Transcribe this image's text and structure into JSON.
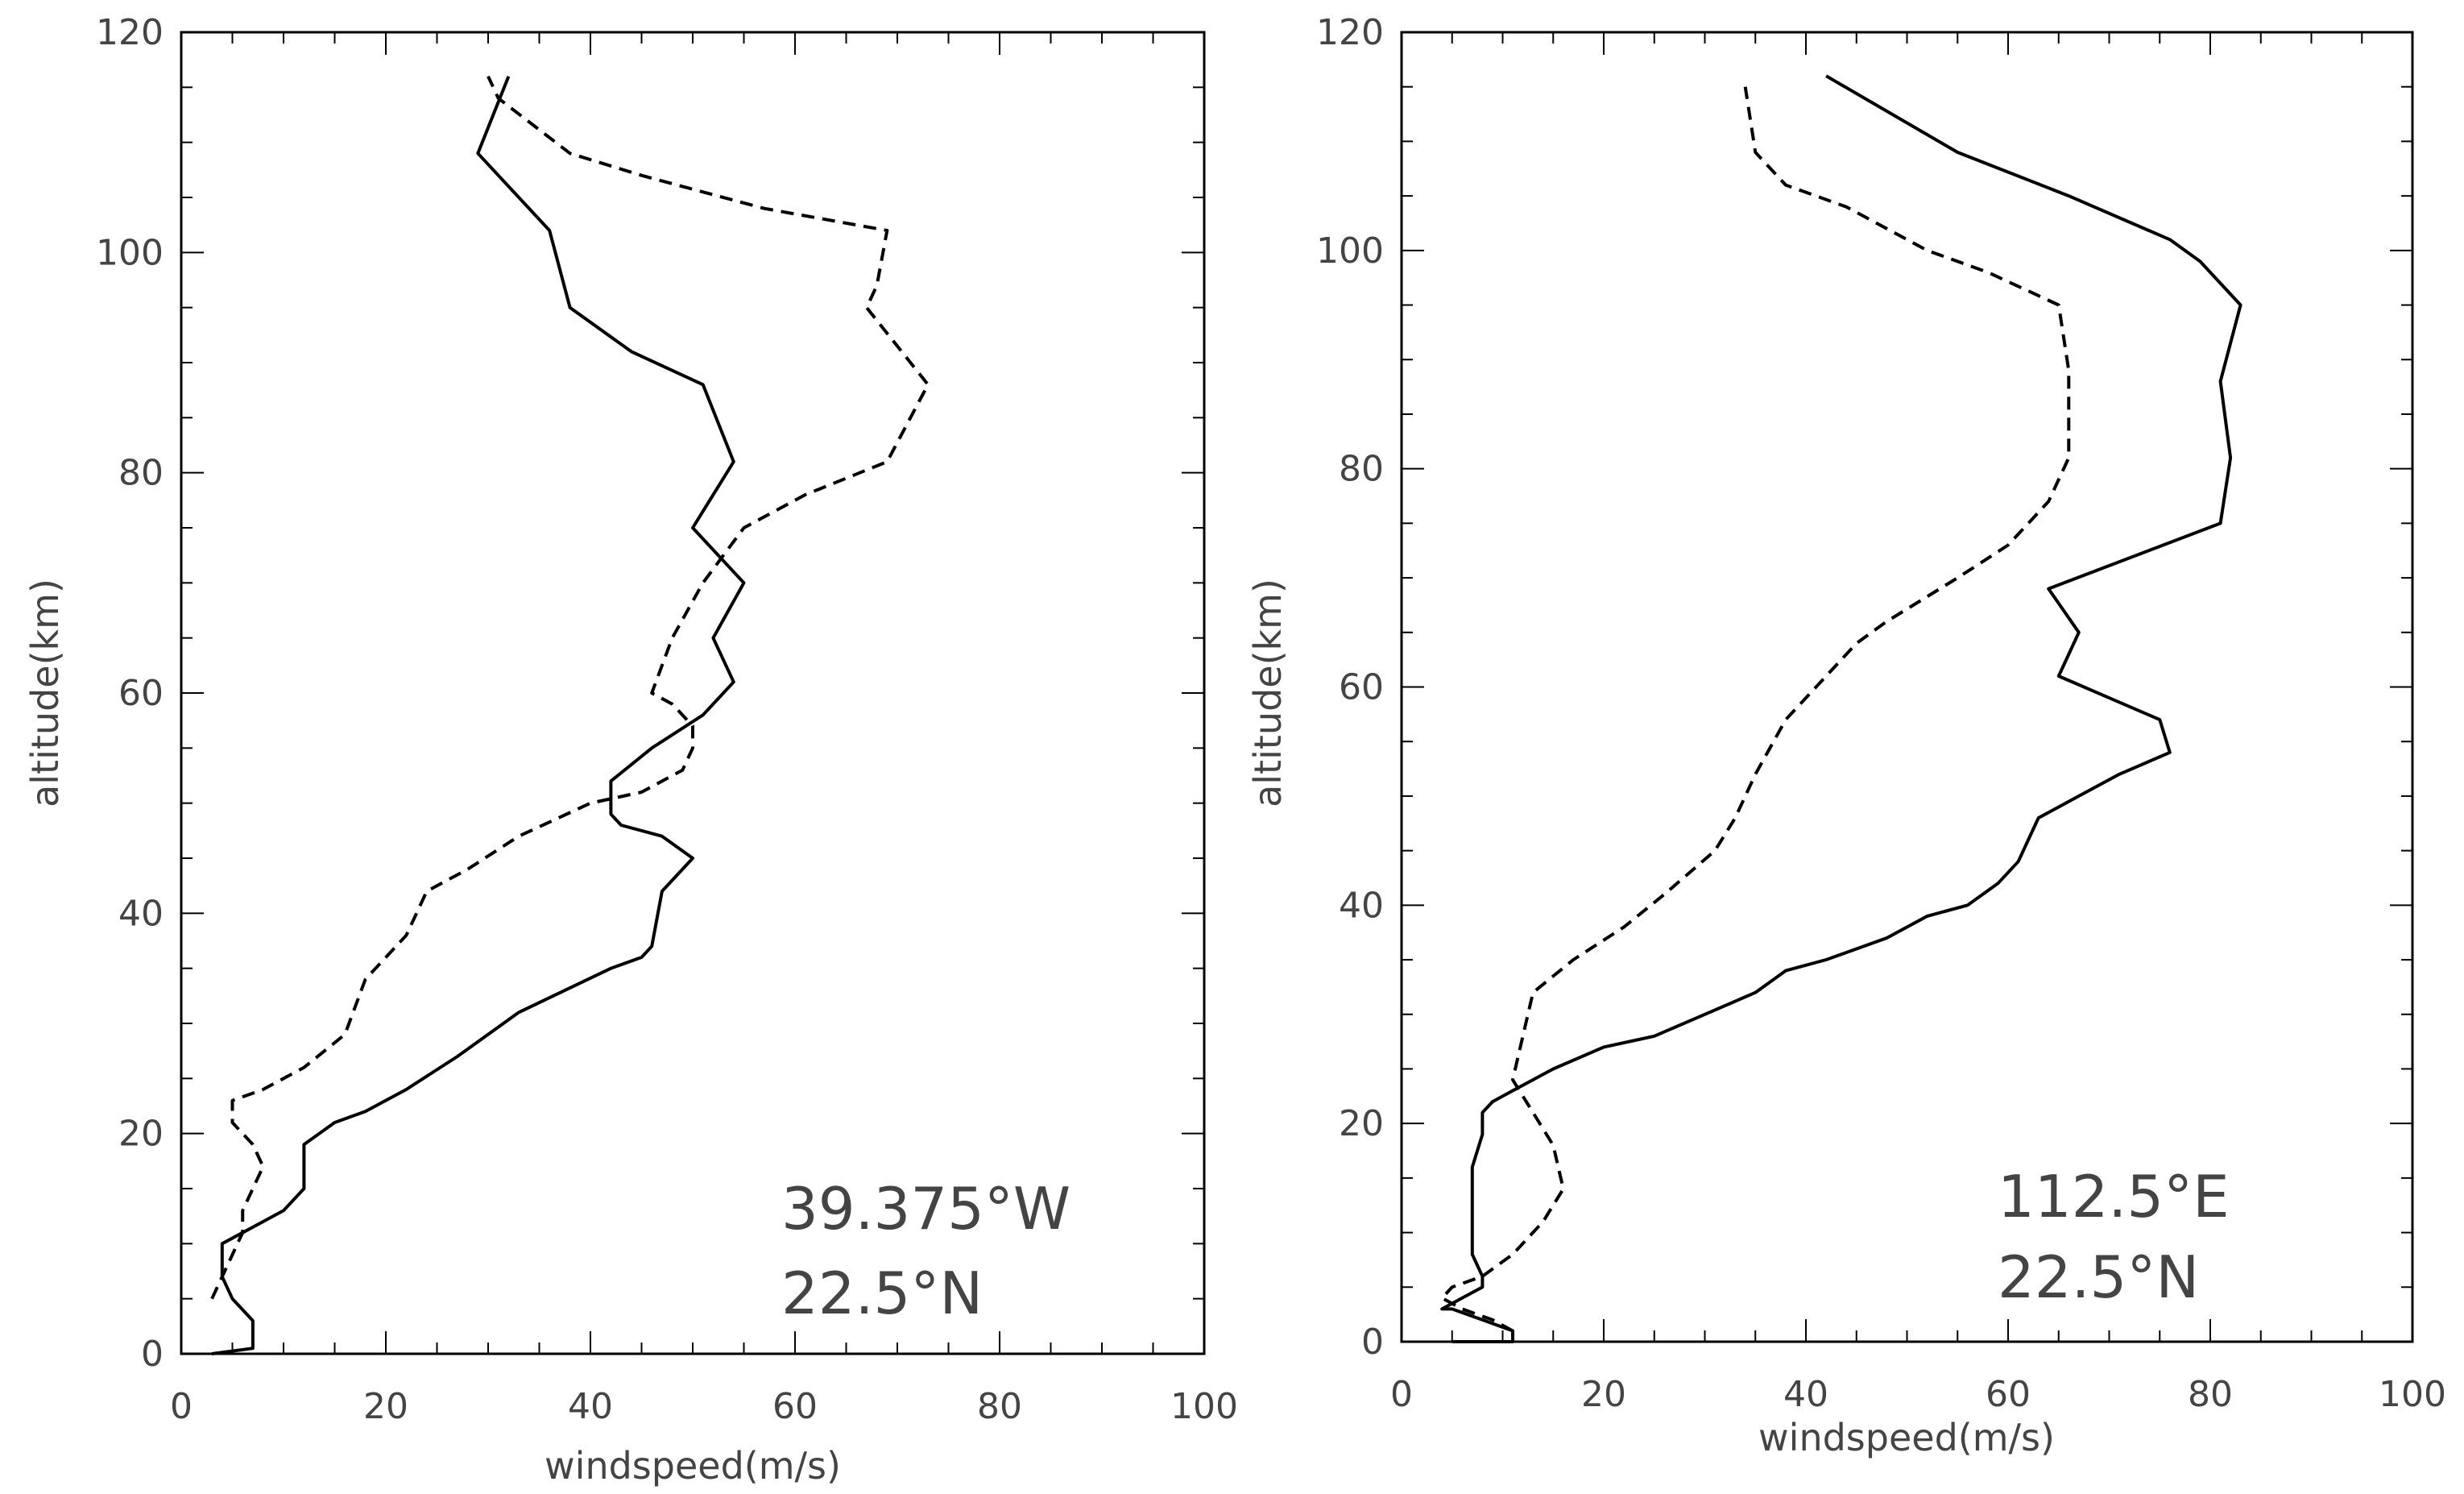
{
  "chart_data": [
    {
      "type": "line",
      "xlabel": "windspeed(m/s)",
      "ylabel": "altitude(km)",
      "xlim": [
        0,
        100
      ],
      "ylim": [
        0,
        120
      ],
      "x_ticks": [
        "0",
        "20",
        "40",
        "60",
        "80",
        "100"
      ],
      "y_ticks": [
        "0",
        "20",
        "40",
        "60",
        "80",
        "100",
        "120"
      ],
      "annotation": [
        "39.375°W",
        "22.5°N"
      ],
      "series": [
        {
          "name": "solid",
          "style": "solid",
          "points": [
            [
              3,
              0
            ],
            [
              7,
              0.5
            ],
            [
              7,
              3
            ],
            [
              6,
              4
            ],
            [
              5,
              5
            ],
            [
              4,
              7
            ],
            [
              4,
              9
            ],
            [
              4,
              10
            ],
            [
              6,
              11
            ],
            [
              8,
              12
            ],
            [
              10,
              13
            ],
            [
              12,
              15
            ],
            [
              12,
              18
            ],
            [
              12,
              19
            ],
            [
              15,
              21
            ],
            [
              18,
              22
            ],
            [
              22,
              24
            ],
            [
              27,
              27
            ],
            [
              33,
              31
            ],
            [
              42,
              35
            ],
            [
              45,
              36
            ],
            [
              46,
              37
            ],
            [
              47,
              42
            ],
            [
              50,
              45
            ],
            [
              47,
              47
            ],
            [
              43,
              48
            ],
            [
              42,
              49
            ],
            [
              42,
              52
            ],
            [
              46,
              55
            ],
            [
              51,
              58
            ],
            [
              54,
              61
            ],
            [
              52,
              65
            ],
            [
              55,
              70
            ],
            [
              50,
              75
            ],
            [
              54,
              81
            ],
            [
              51,
              88
            ],
            [
              44,
              91
            ],
            [
              38,
              95
            ],
            [
              36,
              102
            ],
            [
              29,
              109
            ],
            [
              32,
              116
            ]
          ]
        },
        {
          "name": "dashed",
          "style": "dashed",
          "points": [
            [
              3,
              5
            ],
            [
              4,
              7
            ],
            [
              5,
              9
            ],
            [
              6,
              11
            ],
            [
              6,
              13
            ],
            [
              7,
              15
            ],
            [
              8,
              17
            ],
            [
              7,
              19
            ],
            [
              5,
              21
            ],
            [
              5,
              23
            ],
            [
              8,
              24
            ],
            [
              12,
              26
            ],
            [
              16,
              29
            ],
            [
              18,
              34
            ],
            [
              22,
              38
            ],
            [
              24,
              42
            ],
            [
              28,
              44
            ],
            [
              33,
              47
            ],
            [
              40,
              50
            ],
            [
              45,
              51
            ],
            [
              49,
              53
            ],
            [
              50,
              55
            ],
            [
              50,
              57
            ],
            [
              48,
              59
            ],
            [
              46,
              60
            ],
            [
              48,
              65
            ],
            [
              51,
              70
            ],
            [
              55,
              75
            ],
            [
              61,
              78
            ],
            [
              69,
              81
            ],
            [
              73,
              88
            ],
            [
              67,
              95
            ],
            [
              68,
              97
            ],
            [
              69,
              102
            ],
            [
              57,
              104
            ],
            [
              45,
              107
            ],
            [
              38,
              109
            ],
            [
              31,
              114
            ],
            [
              30,
              116
            ]
          ]
        }
      ]
    },
    {
      "type": "line",
      "xlabel": "windspeed(m/s)",
      "ylabel": "altitude(km)",
      "xlim": [
        0,
        100
      ],
      "ylim": [
        0,
        120
      ],
      "x_ticks": [
        "0",
        "20",
        "40",
        "60",
        "80",
        "100"
      ],
      "y_ticks": [
        "0",
        "20",
        "40",
        "60",
        "80",
        "100",
        "120"
      ],
      "annotation": [
        "112.5°E",
        "22.5°N"
      ],
      "series": [
        {
          "name": "solid",
          "style": "solid",
          "points": [
            [
              5,
              0
            ],
            [
              11,
              0
            ],
            [
              11,
              1
            ],
            [
              8,
              2
            ],
            [
              5,
              3
            ],
            [
              4,
              3
            ],
            [
              6,
              4
            ],
            [
              8,
              5
            ],
            [
              8,
              6
            ],
            [
              7,
              8
            ],
            [
              7,
              10
            ],
            [
              7,
              13
            ],
            [
              7,
              16
            ],
            [
              8,
              19
            ],
            [
              8,
              21
            ],
            [
              9,
              22
            ],
            [
              11,
              23
            ],
            [
              15,
              25
            ],
            [
              20,
              27
            ],
            [
              25,
              28
            ],
            [
              30,
              30
            ],
            [
              35,
              32
            ],
            [
              38,
              34
            ],
            [
              42,
              35
            ],
            [
              48,
              37
            ],
            [
              52,
              39
            ],
            [
              56,
              40
            ],
            [
              59,
              42
            ],
            [
              61,
              44
            ],
            [
              63,
              48
            ],
            [
              67,
              50
            ],
            [
              71,
              52
            ],
            [
              76,
              54
            ],
            [
              75,
              57
            ],
            [
              65,
              61
            ],
            [
              67,
              65
            ],
            [
              64,
              69
            ],
            [
              81,
              75
            ],
            [
              82,
              81
            ],
            [
              81,
              88
            ],
            [
              83,
              95
            ],
            [
              79,
              99
            ],
            [
              76,
              101
            ],
            [
              66,
              105
            ],
            [
              55,
              109
            ],
            [
              42,
              116
            ]
          ]
        },
        {
          "name": "dashed",
          "style": "dashed",
          "points": [
            [
              11,
              1
            ],
            [
              9,
              2
            ],
            [
              6,
              3
            ],
            [
              4,
              4
            ],
            [
              5,
              5
            ],
            [
              8,
              6
            ],
            [
              11,
              8
            ],
            [
              14,
              11
            ],
            [
              16,
              14
            ],
            [
              15,
              18
            ],
            [
              13,
              21
            ],
            [
              11,
              24
            ],
            [
              12,
              28
            ],
            [
              13,
              32
            ],
            [
              17,
              35
            ],
            [
              22,
              38
            ],
            [
              26,
              41
            ],
            [
              31,
              45
            ],
            [
              33,
              48
            ],
            [
              35,
              52
            ],
            [
              38,
              57
            ],
            [
              41,
              60
            ],
            [
              45,
              64
            ],
            [
              48,
              66
            ],
            [
              55,
              70
            ],
            [
              60,
              73
            ],
            [
              64,
              77
            ],
            [
              66,
              81
            ],
            [
              66,
              89
            ],
            [
              65,
              95
            ],
            [
              58,
              98
            ],
            [
              52,
              100
            ],
            [
              44,
              104
            ],
            [
              38,
              106
            ],
            [
              35,
              109
            ],
            [
              34,
              115
            ]
          ]
        }
      ]
    }
  ]
}
